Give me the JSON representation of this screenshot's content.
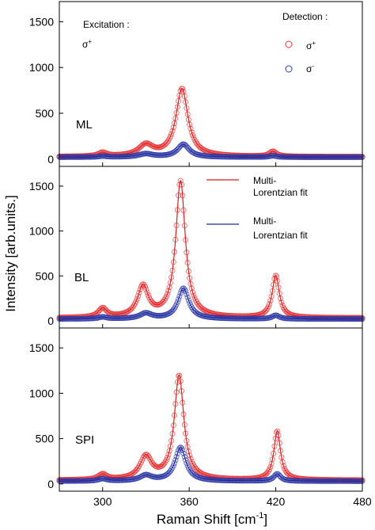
{
  "chart_data": {
    "type": "line",
    "xlabel": "Raman Shift [cm",
    "xlabel_sup": "-1",
    "xlabel_tail": "]",
    "ylabel": "Intensity [arb.units.]",
    "xlim": [
      270,
      480
    ],
    "x_ticks": [
      300,
      360,
      420,
      480
    ],
    "y_ticks": [
      0,
      500,
      1000,
      1500
    ],
    "ylim": [
      -80,
      1720
    ],
    "colors": {
      "sigma_plus": "#e8373a",
      "sigma_minus": "#2e3aa8",
      "fit_plus": "#d81e1e",
      "fit_minus": "#1d2a9a"
    },
    "excitation": {
      "label": "Excitation :",
      "value": "σ",
      "sup": "+"
    },
    "detection": {
      "label": "Detection :",
      "items": [
        {
          "symbol": "σ",
          "sup": "+"
        },
        {
          "symbol": "σ",
          "sup": "-"
        }
      ]
    },
    "fit_legend": [
      {
        "line1": "Multi-",
        "line2": "Lorentzian fit"
      },
      {
        "line1": "Multi-",
        "line2": "Lorentzian fit"
      }
    ],
    "panels": [
      {
        "label": "ML",
        "series": [
          {
            "polarization": "σ+",
            "baseline": 25,
            "peaks": [
              [
                300,
                40,
                3.5
              ],
              [
                330,
                120,
                6
              ],
              [
                355,
                740,
                5
              ],
              [
                418,
                55,
                3
              ]
            ]
          },
          {
            "polarization": "σ-",
            "baseline": 20,
            "peaks": [
              [
                300,
                10,
                3.5
              ],
              [
                330,
                35,
                6
              ],
              [
                356,
                140,
                5
              ],
              [
                418,
                15,
                3
              ]
            ]
          }
        ]
      },
      {
        "label": "BL",
        "series": [
          {
            "polarization": "σ+",
            "baseline": 30,
            "peaks": [
              [
                300,
                100,
                3.5
              ],
              [
                328,
                340,
                4.5
              ],
              [
                354,
                1520,
                4
              ],
              [
                420,
                470,
                3
              ]
            ]
          },
          {
            "polarization": "σ-",
            "baseline": 20,
            "peaks": [
              [
                300,
                20,
                3.5
              ],
              [
                330,
                60,
                5
              ],
              [
                356,
                340,
                4.5
              ],
              [
                420,
                40,
                3
              ]
            ]
          }
        ]
      },
      {
        "label": "SPI",
        "series": [
          {
            "polarization": "σ+",
            "baseline": 40,
            "peaks": [
              [
                300,
                60,
                3.5
              ],
              [
                330,
                250,
                5
              ],
              [
                353,
                1150,
                4
              ],
              [
                421,
                540,
                2.8
              ]
            ]
          },
          {
            "polarization": "σ-",
            "baseline": 30,
            "peaks": [
              [
                300,
                25,
                3.5
              ],
              [
                330,
                60,
                5
              ],
              [
                354,
                370,
                4.5
              ],
              [
                421,
                80,
                2.8
              ]
            ]
          }
        ]
      }
    ]
  }
}
